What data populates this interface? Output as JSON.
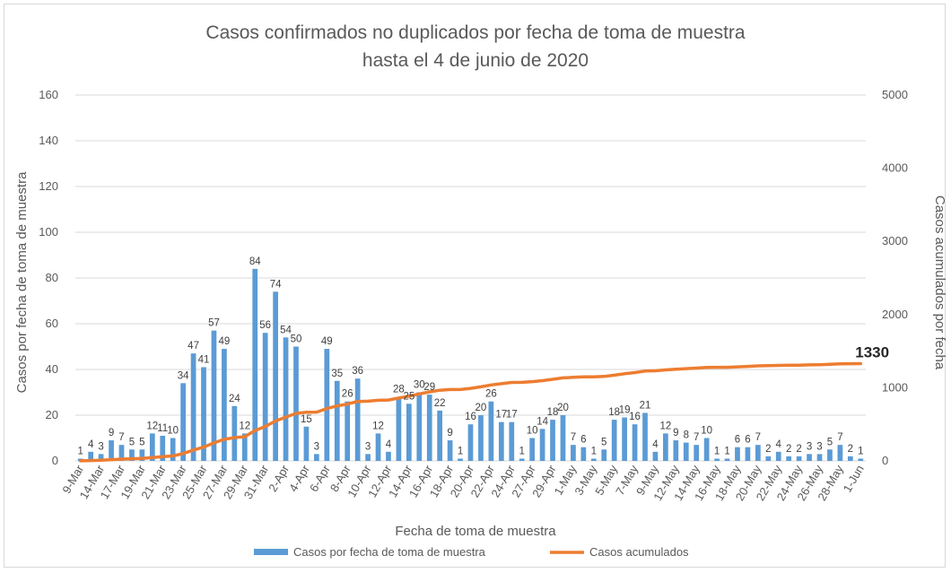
{
  "chart_data": {
    "type": "bar",
    "title_lines": [
      "Casos confirmados no duplicados por fecha de toma de muestra",
      "hasta el 4 de junio de 2020"
    ],
    "xlabel": "Fecha de toma de muestra",
    "ylabel": "Casos por fecha de toma de muestra",
    "y2label": "Casos acumulados por fecha",
    "ylim": [
      0,
      160
    ],
    "y2lim": [
      0,
      5000
    ],
    "yticks": [
      "0",
      "20",
      "40",
      "60",
      "80",
      "100",
      "120",
      "140",
      "160"
    ],
    "y2ticks": [
      "0",
      "1000",
      "2000",
      "3000",
      "4000",
      "5000"
    ],
    "x_tick_labels": [
      "9-Mar",
      "14-Mar",
      "17-Mar",
      "19-Mar",
      "21-Mar",
      "23-Mar",
      "25-Mar",
      "27-Mar",
      "29-Mar",
      "31-Mar",
      "2-Apr",
      "4-Apr",
      "6-Apr",
      "8-Apr",
      "10-Apr",
      "12-Apr",
      "14-Apr",
      "16-Apr",
      "18-Apr",
      "20-Apr",
      "22-Apr",
      "24-Apr",
      "27-Apr",
      "29-Apr",
      "1-May",
      "3-May",
      "5-May",
      "7-May",
      "9-May",
      "12-May",
      "14-May",
      "16-May",
      "18-May",
      "20-May",
      "22-May",
      "24-May",
      "26-May",
      "28-May",
      "1-Jun"
    ],
    "grid": true,
    "legend_position": "bottom",
    "colors": {
      "bars": "#5b9bd5",
      "line": "#ed7d31",
      "grid": "#d9d9d9"
    },
    "series": [
      {
        "name": "Casos por fecha de toma de muestra",
        "type": "bar",
        "axis": "left",
        "values": [
          1,
          4,
          3,
          9,
          7,
          5,
          5,
          12,
          11,
          10,
          34,
          47,
          41,
          57,
          49,
          24,
          12,
          84,
          56,
          74,
          54,
          50,
          15,
          3,
          49,
          35,
          26,
          36,
          3,
          12,
          4,
          28,
          25,
          30,
          29,
          22,
          9,
          1,
          16,
          20,
          26,
          17,
          17,
          1,
          10,
          14,
          18,
          20,
          7,
          6,
          1,
          5,
          18,
          19,
          16,
          21,
          4,
          12,
          9,
          8,
          7,
          10,
          1,
          1,
          6,
          6,
          7,
          2,
          4,
          2,
          2,
          3,
          3,
          5,
          7,
          2,
          1
        ]
      },
      {
        "name": "Casos acumulados",
        "type": "line",
        "axis": "right",
        "final_label": "1330"
      }
    ]
  }
}
